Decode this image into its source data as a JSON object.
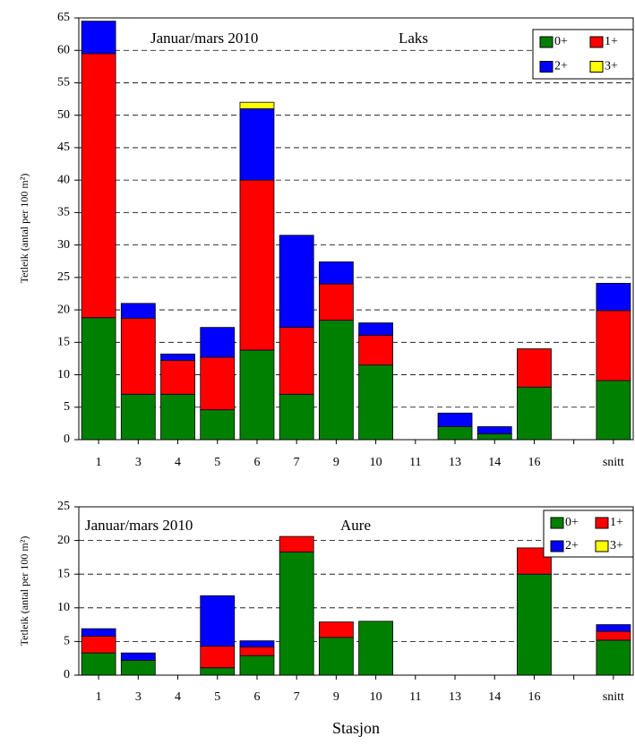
{
  "chart_data": [
    {
      "type": "stacked_bar",
      "annotations": [
        "Januar/mars  2010",
        "Laks"
      ],
      "ylabel": "Tetleik (antal per 100 m²)",
      "categories": [
        "1",
        "3",
        "4",
        "5",
        "6",
        "7",
        "9",
        "10",
        "11",
        "13",
        "14",
        "16",
        null,
        "snitt"
      ],
      "series": [
        {
          "name": "0+",
          "color": "#008000",
          "values": [
            18.8,
            7,
            7,
            4.6,
            13.8,
            7,
            18.4,
            11.5,
            0,
            2,
            0.9,
            8.1,
            null,
            9.1
          ]
        },
        {
          "name": "1+",
          "color": "#ff0000",
          "values": [
            40.7,
            11.7,
            5.2,
            8.1,
            26.2,
            10.3,
            5.6,
            4.6,
            0,
            0,
            0,
            5.9,
            null,
            10.8
          ]
        },
        {
          "name": "2+",
          "color": "#0000ff",
          "values": [
            5.0,
            2.3,
            1.0,
            4.6,
            11,
            14.2,
            3.4,
            1.9,
            0,
            2.1,
            1.1,
            0,
            null,
            4.2
          ]
        },
        {
          "name": "3+",
          "color": "#ffff00",
          "values": [
            0,
            0,
            0,
            0,
            1,
            0,
            0,
            0,
            0,
            0,
            0,
            0,
            null,
            0
          ]
        }
      ],
      "ylim": [
        0,
        65
      ],
      "yticks": [
        0,
        5,
        10,
        15,
        20,
        25,
        30,
        35,
        40,
        45,
        50,
        55,
        60,
        65
      ],
      "grid": true,
      "legend": "upper right"
    },
    {
      "type": "stacked_bar",
      "annotations": [
        "Januar/mars  2010",
        "Aure"
      ],
      "ylabel": "Tetleik (antal per 100 m²)",
      "xlabel": "Stasjon",
      "categories": [
        "1",
        "3",
        "4",
        "5",
        "6",
        "7",
        "9",
        "10",
        "11",
        "13",
        "14",
        "16",
        null,
        "snitt"
      ],
      "series": [
        {
          "name": "0+",
          "color": "#008000",
          "values": [
            3.3,
            2.2,
            0,
            1.1,
            2.9,
            18.3,
            5.6,
            8,
            0,
            0,
            0,
            15,
            null,
            5.2
          ]
        },
        {
          "name": "1+",
          "color": "#ff0000",
          "values": [
            2.5,
            0,
            0,
            3.2,
            1.3,
            2.3,
            2.3,
            0,
            0,
            0,
            0,
            3.9,
            null,
            1.3
          ]
        },
        {
          "name": "2+",
          "color": "#0000ff",
          "values": [
            1.1,
            1.1,
            0,
            7.5,
            0.9,
            0,
            0,
            0,
            0,
            0,
            0,
            0,
            null,
            1.0
          ]
        },
        {
          "name": "3+",
          "color": "#ffff00",
          "values": [
            0,
            0,
            0,
            0,
            0,
            0,
            0,
            0,
            0,
            0,
            0,
            0,
            null,
            0
          ]
        }
      ],
      "ylim": [
        0,
        25
      ],
      "yticks": [
        0,
        5,
        10,
        15,
        20,
        25
      ],
      "grid": true,
      "legend": "upper right"
    }
  ]
}
